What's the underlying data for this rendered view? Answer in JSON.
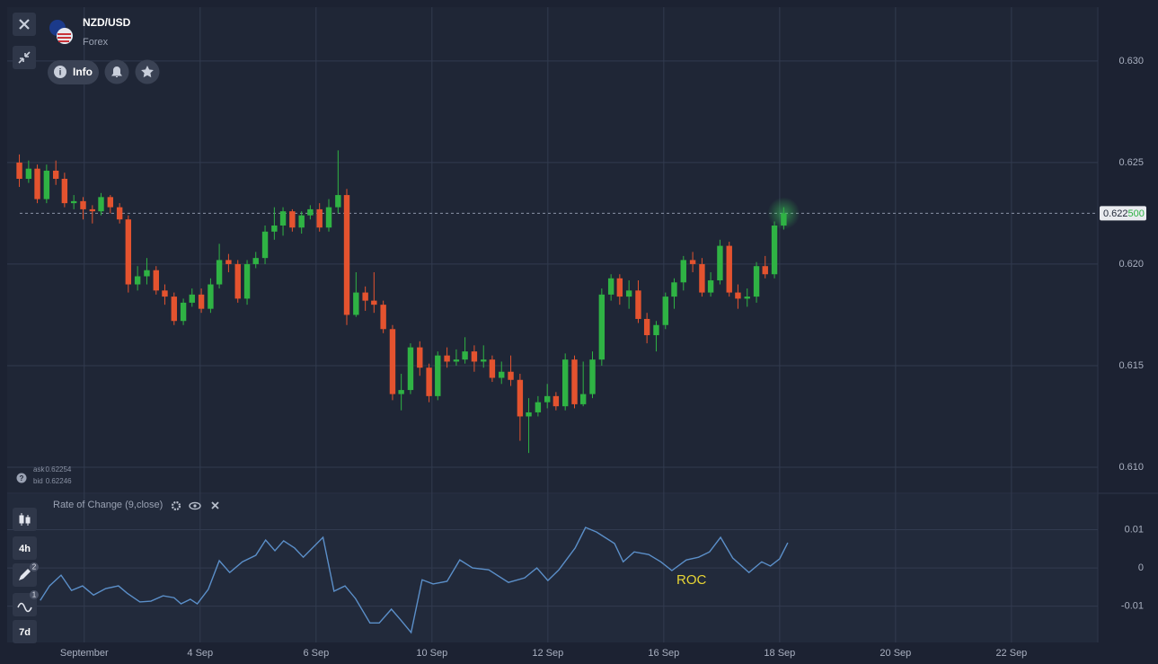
{
  "header": {
    "symbol": "NZD/USD",
    "market": "Forex",
    "info": "Info"
  },
  "quote": {
    "ask_label": "ask",
    "ask": 0.62254,
    "bid_label": "bid",
    "bid": 0.62246
  },
  "indicator": {
    "name": "Rate of Change (9,close)"
  },
  "toolbar": {
    "period": "4h",
    "range": "7d",
    "draw_badge": 2,
    "indicator_badge": 1
  },
  "chart_data": [
    {
      "type": "candlestick",
      "x": [
        -1.12,
        -0.96,
        -0.81,
        -0.65,
        -0.49,
        -0.34,
        -0.18,
        -0.02,
        0.14,
        0.29,
        0.45,
        0.61,
        0.76,
        0.92,
        1.08,
        1.24,
        1.39,
        1.55,
        1.71,
        1.86,
        2.02,
        2.18,
        2.33,
        2.49,
        2.65,
        2.81,
        2.96,
        3.12,
        3.28,
        3.43,
        3.59,
        3.75,
        3.9,
        4.06,
        4.22,
        4.38,
        4.53,
        4.69,
        4.85,
        5.0,
        5.16,
        5.32,
        5.47,
        5.63,
        5.79,
        5.95,
        6.1,
        6.26,
        6.42,
        6.57,
        6.73,
        6.89,
        7.04,
        7.2,
        7.36,
        7.52,
        7.67,
        7.83,
        7.99,
        8.14,
        8.3,
        8.46,
        8.61,
        8.77,
        8.93,
        9.09,
        9.24,
        9.4,
        9.56,
        9.71,
        9.87,
        10.03,
        10.18,
        10.34,
        10.5,
        10.66,
        10.81,
        10.97,
        11.13,
        11.28,
        11.44,
        11.6,
        11.75,
        11.91,
        12.07
      ],
      "open": [
        0.625,
        0.6242,
        0.6247,
        0.6232,
        0.6246,
        0.6242,
        0.623,
        0.6231,
        0.6227,
        0.6226,
        0.6233,
        0.6228,
        0.6222,
        0.619,
        0.6194,
        0.6197,
        0.6187,
        0.6184,
        0.6172,
        0.6181,
        0.6185,
        0.6178,
        0.619,
        0.6202,
        0.62,
        0.6183,
        0.62,
        0.6203,
        0.6216,
        0.6219,
        0.6226,
        0.6218,
        0.6224,
        0.6227,
        0.6218,
        0.6228,
        0.6234,
        0.6175,
        0.6186,
        0.6182,
        0.618,
        0.6168,
        0.6136,
        0.6138,
        0.6159,
        0.6149,
        0.6135,
        0.6155,
        0.6152,
        0.6153,
        0.6157,
        0.6152,
        0.6153,
        0.6144,
        0.6147,
        0.6143,
        0.6125,
        0.6127,
        0.6132,
        0.6135,
        0.613,
        0.6153,
        0.6131,
        0.6136,
        0.6153,
        0.6185,
        0.6193,
        0.6184,
        0.6187,
        0.6173,
        0.6165,
        0.617,
        0.6184,
        0.6191,
        0.6202,
        0.62,
        0.6186,
        0.6192,
        0.6209,
        0.6186,
        0.6183,
        0.6184,
        0.6199,
        0.6195,
        0.6219
      ],
      "high": [
        0.6254,
        0.6251,
        0.6249,
        0.6249,
        0.6251,
        0.6245,
        0.6234,
        0.6233,
        0.6229,
        0.6235,
        0.6234,
        0.623,
        0.6224,
        0.6199,
        0.6203,
        0.6199,
        0.619,
        0.6186,
        0.6183,
        0.6188,
        0.6188,
        0.6193,
        0.621,
        0.6205,
        0.6202,
        0.6202,
        0.6206,
        0.6219,
        0.6228,
        0.6228,
        0.6227,
        0.6226,
        0.6229,
        0.623,
        0.6232,
        0.6256,
        0.6237,
        0.6196,
        0.6189,
        0.6196,
        0.6182,
        0.617,
        0.6146,
        0.6161,
        0.6162,
        0.6151,
        0.6157,
        0.6159,
        0.6158,
        0.6164,
        0.616,
        0.616,
        0.6155,
        0.6152,
        0.6155,
        0.6146,
        0.6134,
        0.6135,
        0.6141,
        0.6137,
        0.6156,
        0.6155,
        0.6152,
        0.6157,
        0.6188,
        0.6195,
        0.6195,
        0.6192,
        0.6192,
        0.6176,
        0.6172,
        0.6186,
        0.6193,
        0.6204,
        0.6206,
        0.6203,
        0.6196,
        0.6212,
        0.6211,
        0.619,
        0.6188,
        0.6201,
        0.6204,
        0.6221,
        0.6228
      ],
      "low": [
        0.6238,
        0.624,
        0.623,
        0.623,
        0.6239,
        0.6228,
        0.6227,
        0.6222,
        0.622,
        0.6224,
        0.6225,
        0.622,
        0.6186,
        0.6187,
        0.619,
        0.6185,
        0.618,
        0.617,
        0.617,
        0.6179,
        0.6176,
        0.6176,
        0.6188,
        0.6196,
        0.6181,
        0.618,
        0.6198,
        0.62,
        0.6212,
        0.6214,
        0.6216,
        0.6215,
        0.6222,
        0.6216,
        0.6216,
        0.6225,
        0.617,
        0.6174,
        0.6177,
        0.6176,
        0.6166,
        0.6133,
        0.6128,
        0.6136,
        0.6145,
        0.6132,
        0.6133,
        0.6149,
        0.615,
        0.6151,
        0.6147,
        0.6149,
        0.6142,
        0.6141,
        0.614,
        0.6113,
        0.6107,
        0.6125,
        0.6129,
        0.6128,
        0.6128,
        0.6129,
        0.613,
        0.6134,
        0.615,
        0.6182,
        0.618,
        0.6178,
        0.6171,
        0.6161,
        0.6157,
        0.6168,
        0.6178,
        0.6187,
        0.6196,
        0.6184,
        0.6184,
        0.619,
        0.6184,
        0.6178,
        0.6179,
        0.6181,
        0.6193,
        0.6193,
        0.6217
      ],
      "close": [
        0.6242,
        0.6247,
        0.6232,
        0.6246,
        0.6242,
        0.623,
        0.6231,
        0.6227,
        0.6226,
        0.6233,
        0.6228,
        0.6222,
        0.619,
        0.6194,
        0.6197,
        0.6187,
        0.6184,
        0.6172,
        0.6181,
        0.6185,
        0.6178,
        0.619,
        0.6202,
        0.62,
        0.6183,
        0.62,
        0.6203,
        0.6216,
        0.6219,
        0.6226,
        0.6218,
        0.6224,
        0.6227,
        0.6218,
        0.6228,
        0.6234,
        0.6175,
        0.6186,
        0.6182,
        0.618,
        0.6168,
        0.6136,
        0.6138,
        0.6159,
        0.6149,
        0.6135,
        0.6155,
        0.6152,
        0.6153,
        0.6157,
        0.6152,
        0.6153,
        0.6144,
        0.6147,
        0.6143,
        0.6125,
        0.6127,
        0.6132,
        0.6135,
        0.613,
        0.6153,
        0.6131,
        0.6136,
        0.6153,
        0.6185,
        0.6193,
        0.6184,
        0.6187,
        0.6173,
        0.6165,
        0.617,
        0.6184,
        0.6191,
        0.6202,
        0.62,
        0.6186,
        0.6192,
        0.6209,
        0.6186,
        0.6183,
        0.6184,
        0.6199,
        0.6195,
        0.6219,
        0.6225
      ],
      "up_color": "#2fb344",
      "down_color": "#e4532f",
      "xlim": [
        -1.33,
        17.49
      ],
      "xticks": [
        {
          "value": 0,
          "label": "September"
        },
        {
          "value": 2,
          "label": "4 Sep"
        },
        {
          "value": 4,
          "label": "6 Sep"
        },
        {
          "value": 6,
          "label": "10 Sep"
        },
        {
          "value": 8,
          "label": "12 Sep"
        },
        {
          "value": 10,
          "label": "16 Sep"
        },
        {
          "value": 12,
          "label": "18 Sep"
        },
        {
          "value": 14,
          "label": "20 Sep"
        },
        {
          "value": 16,
          "label": "22 Sep"
        }
      ],
      "ylim": [
        0.60876,
        0.63265
      ],
      "yticks": [
        {
          "value": 0.61,
          "label": "0.610"
        },
        {
          "value": 0.615,
          "label": "0.615"
        },
        {
          "value": 0.62,
          "label": "0.620"
        },
        {
          "value": 0.625,
          "label": "0.625"
        },
        {
          "value": 0.63,
          "label": "0.630"
        }
      ],
      "grid": true,
      "current_price": {
        "value": 0.6225,
        "label": "0.622",
        "pips": "500"
      }
    },
    {
      "type": "line",
      "x": [
        -0.76,
        -0.6,
        -0.4,
        -0.22,
        -0.03,
        0.16,
        0.37,
        0.59,
        0.74,
        0.96,
        1.15,
        1.36,
        1.55,
        1.67,
        1.83,
        1.95,
        2.14,
        2.33,
        2.51,
        2.73,
        2.96,
        3.13,
        3.29,
        3.44,
        3.63,
        3.78,
        4.12,
        4.31,
        4.5,
        4.68,
        4.93,
        5.09,
        5.3,
        5.46,
        5.64,
        5.83,
        6.02,
        6.26,
        6.48,
        6.7,
        6.98,
        7.32,
        7.6,
        7.81,
        8.0,
        8.19,
        8.47,
        8.65,
        8.84,
        9.15,
        9.3,
        9.49,
        9.74,
        9.95,
        10.14,
        10.39,
        10.6,
        10.79,
        10.98,
        11.19,
        11.47,
        11.69,
        11.84,
        12.0,
        12.14
      ],
      "series": [
        {
          "name": "ROC",
          "color": "#5b8fc9",
          "label_color": "#e8d534",
          "values": [
            -0.0085,
            -0.0047,
            -0.0019,
            -0.0059,
            -0.0047,
            -0.0071,
            -0.0054,
            -0.0047,
            -0.0066,
            -0.0089,
            -0.0087,
            -0.0073,
            -0.0078,
            -0.0094,
            -0.0082,
            -0.0094,
            -0.0056,
            0.0019,
            -0.0012,
            0.0016,
            0.0033,
            0.0073,
            0.0045,
            0.0071,
            0.0052,
            0.0028,
            0.008,
            -0.0061,
            -0.0047,
            -0.008,
            -0.0144,
            -0.0144,
            -0.0108,
            -0.0136,
            -0.0169,
            -0.0031,
            -0.0042,
            -0.0035,
            0.0021,
            0,
            -0.0005,
            -0.0038,
            -0.0026,
            0,
            -0.0033,
            -0.0005,
            0.0052,
            0.0106,
            0.0094,
            0.0064,
            0.0016,
            0.0042,
            0.0035,
            0.0016,
            -0.0007,
            0.0021,
            0.0028,
            0.0042,
            0.008,
            0.0026,
            -0.0012,
            0.0016,
            0.0005,
            0.0024,
            0.0066
          ]
        }
      ],
      "xlim": [
        -1.33,
        17.49
      ],
      "ylim": [
        -0.0195,
        0.0193
      ],
      "yticks": [
        -0.01,
        0,
        0.01
      ],
      "grid": true
    }
  ]
}
